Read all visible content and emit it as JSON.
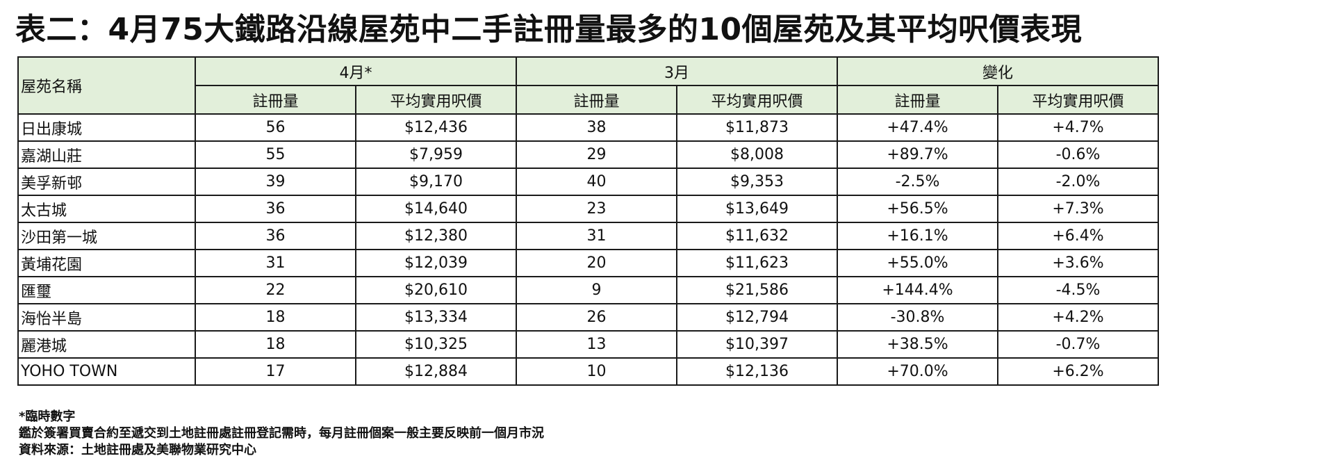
{
  "title": "表二：4月75大鐵路沿線屋苑中二手註冊量最多的10個屋苑及其平均呎價表現",
  "table": {
    "estate_header": "屋苑名稱",
    "groups": [
      "4月*",
      "3月",
      "變化"
    ],
    "subheaders": [
      "註冊量",
      "平均實用呎價",
      "註冊量",
      "平均實用呎價",
      "註冊量",
      "平均實用呎價"
    ],
    "rows": [
      {
        "name": "日出康城",
        "apr_reg": "56",
        "apr_price": "$12,436",
        "mar_reg": "38",
        "mar_price": "$11,873",
        "chg_reg": "+47.4%",
        "chg_price": "+4.7%"
      },
      {
        "name": "嘉湖山莊",
        "apr_reg": "55",
        "apr_price": "$7,959",
        "mar_reg": "29",
        "mar_price": "$8,008",
        "chg_reg": "+89.7%",
        "chg_price": "-0.6%"
      },
      {
        "name": "美孚新邨",
        "apr_reg": "39",
        "apr_price": "$9,170",
        "mar_reg": "40",
        "mar_price": "$9,353",
        "chg_reg": "-2.5%",
        "chg_price": "-2.0%"
      },
      {
        "name": "太古城",
        "apr_reg": "36",
        "apr_price": "$14,640",
        "mar_reg": "23",
        "mar_price": "$13,649",
        "chg_reg": "+56.5%",
        "chg_price": "+7.3%"
      },
      {
        "name": "沙田第一城",
        "apr_reg": "36",
        "apr_price": "$12,380",
        "mar_reg": "31",
        "mar_price": "$11,632",
        "chg_reg": "+16.1%",
        "chg_price": "+6.4%"
      },
      {
        "name": "黃埔花園",
        "apr_reg": "31",
        "apr_price": "$12,039",
        "mar_reg": "20",
        "mar_price": "$11,623",
        "chg_reg": "+55.0%",
        "chg_price": "+3.6%"
      },
      {
        "name": "匯璽",
        "apr_reg": "22",
        "apr_price": "$20,610",
        "mar_reg": "9",
        "mar_price": "$21,586",
        "chg_reg": "+144.4%",
        "chg_price": "-4.5%"
      },
      {
        "name": "海怡半島",
        "apr_reg": "18",
        "apr_price": "$13,334",
        "mar_reg": "26",
        "mar_price": "$12,794",
        "chg_reg": "-30.8%",
        "chg_price": "+4.2%"
      },
      {
        "name": "麗港城",
        "apr_reg": "18",
        "apr_price": "$10,325",
        "mar_reg": "13",
        "mar_price": "$10,397",
        "chg_reg": "+38.5%",
        "chg_price": "-0.7%"
      },
      {
        "name": "YOHO TOWN",
        "apr_reg": "17",
        "apr_price": "$12,884",
        "mar_reg": "10",
        "mar_price": "$12,136",
        "chg_reg": "+70.0%",
        "chg_price": "+6.2%"
      }
    ]
  },
  "notes": [
    "*臨時數字",
    "鑑於簽署買賣合約至遞交到土地註冊處註冊登記需時，每月註冊個案一般主要反映前一個月市況",
    "資料來源：土地註冊處及美聯物業研究中心"
  ],
  "colors": {
    "header_bg": "#e2efda",
    "border": "#1a1a1a"
  }
}
